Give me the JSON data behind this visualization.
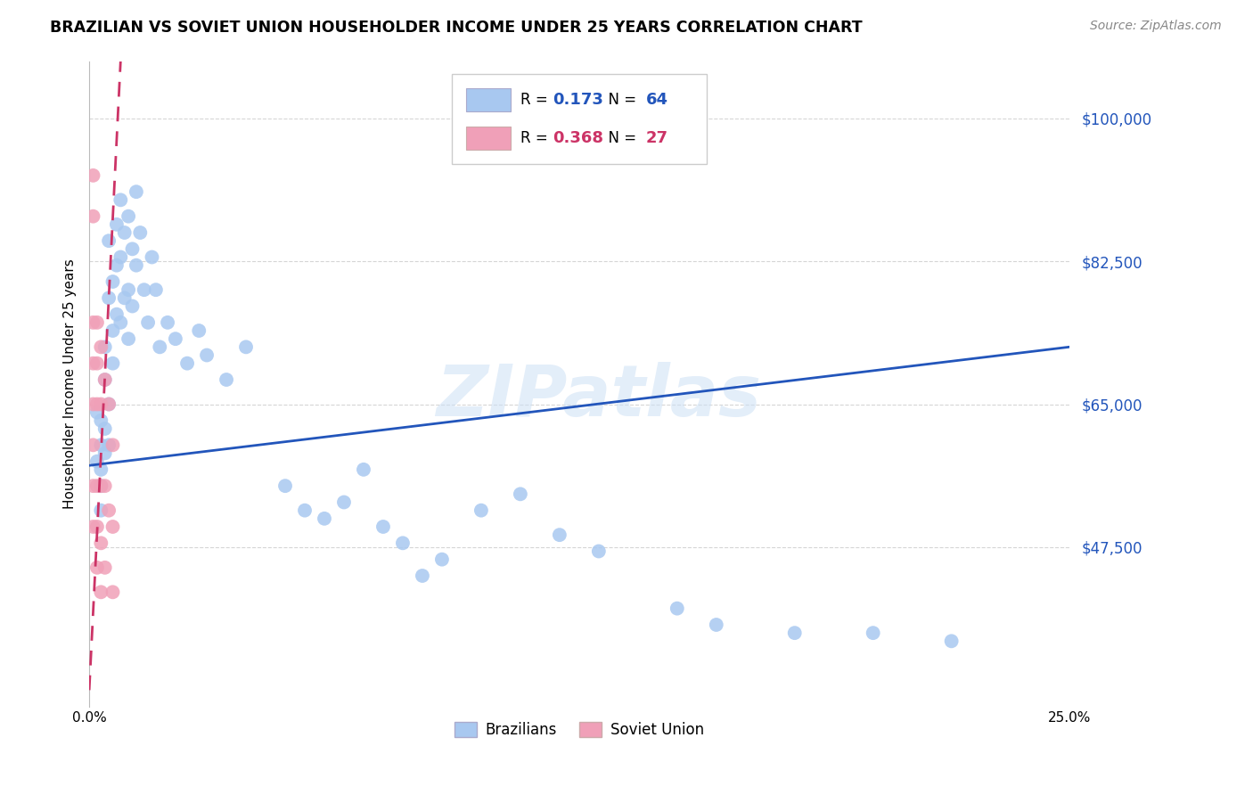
{
  "title": "BRAZILIAN VS SOVIET UNION HOUSEHOLDER INCOME UNDER 25 YEARS CORRELATION CHART",
  "source": "Source: ZipAtlas.com",
  "ylabel": "Householder Income Under 25 years",
  "xlim": [
    0.0,
    0.25
  ],
  "ylim": [
    28000,
    107000
  ],
  "yticks": [
    47500,
    65000,
    82500,
    100000
  ],
  "ytick_labels": [
    "$47,500",
    "$65,000",
    "$82,500",
    "$100,000"
  ],
  "xticks": [
    0.0,
    0.05,
    0.1,
    0.15,
    0.2,
    0.25
  ],
  "xtick_labels": [
    "0.0%",
    "",
    "",
    "",
    "",
    "25.0%"
  ],
  "brazil_R": 0.173,
  "brazil_N": 64,
  "soviet_R": 0.368,
  "soviet_N": 27,
  "brazil_color": "#a8c8f0",
  "brazil_line_color": "#2255bb",
  "soviet_color": "#f0a0b8",
  "soviet_line_color": "#cc3366",
  "brazil_scatter_x": [
    0.002,
    0.002,
    0.003,
    0.003,
    0.003,
    0.003,
    0.003,
    0.004,
    0.004,
    0.004,
    0.004,
    0.005,
    0.005,
    0.005,
    0.005,
    0.006,
    0.006,
    0.006,
    0.007,
    0.007,
    0.007,
    0.008,
    0.008,
    0.008,
    0.009,
    0.009,
    0.01,
    0.01,
    0.01,
    0.011,
    0.011,
    0.012,
    0.012,
    0.013,
    0.014,
    0.015,
    0.016,
    0.017,
    0.018,
    0.02,
    0.022,
    0.025,
    0.028,
    0.03,
    0.035,
    0.04,
    0.05,
    0.055,
    0.06,
    0.065,
    0.07,
    0.075,
    0.08,
    0.085,
    0.09,
    0.1,
    0.11,
    0.12,
    0.13,
    0.15,
    0.16,
    0.18,
    0.2,
    0.22
  ],
  "brazil_scatter_y": [
    58000,
    64000,
    60000,
    55000,
    63000,
    57000,
    52000,
    72000,
    68000,
    62000,
    59000,
    85000,
    78000,
    65000,
    60000,
    80000,
    74000,
    70000,
    87000,
    82000,
    76000,
    90000,
    83000,
    75000,
    86000,
    78000,
    88000,
    79000,
    73000,
    84000,
    77000,
    91000,
    82000,
    86000,
    79000,
    75000,
    83000,
    79000,
    72000,
    75000,
    73000,
    70000,
    74000,
    71000,
    68000,
    72000,
    55000,
    52000,
    51000,
    53000,
    57000,
    50000,
    48000,
    44000,
    46000,
    52000,
    54000,
    49000,
    47000,
    40000,
    38000,
    37000,
    37000,
    36000
  ],
  "soviet_scatter_x": [
    0.001,
    0.001,
    0.001,
    0.001,
    0.001,
    0.001,
    0.001,
    0.001,
    0.002,
    0.002,
    0.002,
    0.002,
    0.002,
    0.002,
    0.003,
    0.003,
    0.003,
    0.003,
    0.003,
    0.004,
    0.004,
    0.004,
    0.005,
    0.005,
    0.006,
    0.006,
    0.006
  ],
  "soviet_scatter_y": [
    93000,
    88000,
    75000,
    70000,
    65000,
    60000,
    55000,
    50000,
    75000,
    70000,
    65000,
    55000,
    50000,
    45000,
    72000,
    65000,
    55000,
    48000,
    42000,
    68000,
    55000,
    45000,
    65000,
    52000,
    60000,
    50000,
    42000
  ],
  "brazil_trend_x": [
    0.0,
    0.25
  ],
  "brazil_trend_y": [
    57500,
    72000
  ],
  "soviet_trend_x": [
    0.0,
    0.008
  ],
  "soviet_trend_y": [
    30000,
    107000
  ],
  "watermark": "ZIPatlas",
  "legend_brazil_label": "Brazilians",
  "legend_soviet_label": "Soviet Union",
  "background_color": "#ffffff",
  "grid_color": "#cccccc"
}
